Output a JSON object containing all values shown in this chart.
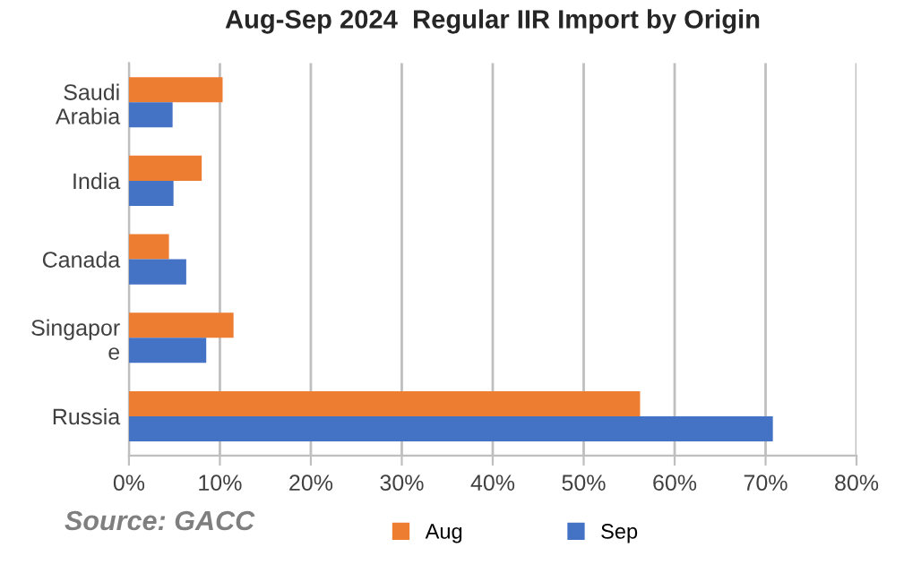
{
  "chart_data": {
    "type": "bar",
    "orientation": "horizontal",
    "title": "Aug-Sep 2024  Regular IIR Import by Origin",
    "categories": [
      "Saudi\nArabia",
      "India",
      "Canada",
      "Singapor\ne",
      "Russia"
    ],
    "series": [
      {
        "name": "Aug",
        "color": "#ed7d31",
        "values": [
          10.3,
          8.0,
          4.4,
          11.5,
          56.2
        ]
      },
      {
        "name": "Sep",
        "color": "#4472c4",
        "values": [
          4.8,
          4.9,
          6.3,
          8.5,
          70.8
        ]
      }
    ],
    "xlim": [
      0,
      80
    ],
    "xticks": [
      {
        "value": 0,
        "label": "0%"
      },
      {
        "value": 10,
        "label": "10%"
      },
      {
        "value": 20,
        "label": "20%"
      },
      {
        "value": 30,
        "label": "30%"
      },
      {
        "value": 40,
        "label": "40%"
      },
      {
        "value": 50,
        "label": "50%"
      },
      {
        "value": 60,
        "label": "60%"
      },
      {
        "value": 70,
        "label": "70%"
      },
      {
        "value": 80,
        "label": "80%"
      }
    ],
    "grid": "x",
    "legend": "bottom",
    "annotations": [
      "Source: GACC"
    ]
  }
}
